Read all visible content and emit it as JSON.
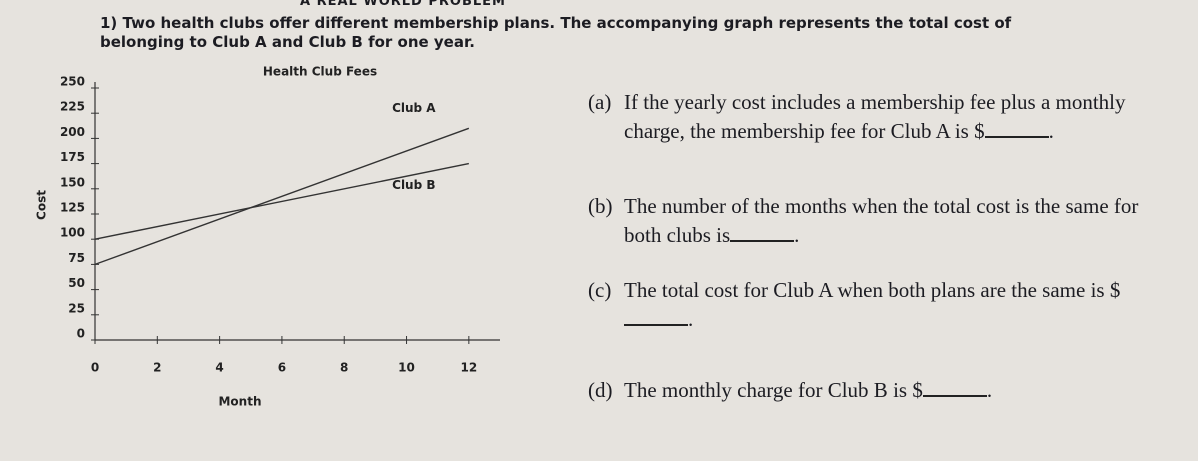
{
  "header": "A REAL WORLD PROBLEM",
  "problem": "1) Two health clubs offer different membership plans. The accompanying graph represents the total cost of belonging to Club A and Club B for one year.",
  "chart": {
    "type": "line",
    "title": "Health Club Fees",
    "x_label": "Month",
    "y_label": "Cost",
    "xlim": [
      0,
      13
    ],
    "ylim": [
      0,
      250
    ],
    "xticks": [
      0,
      2,
      4,
      6,
      8,
      10,
      12
    ],
    "yticks": [
      0,
      25,
      50,
      75,
      100,
      125,
      150,
      175,
      200,
      225,
      250
    ],
    "series": [
      {
        "name": "Club A",
        "color": "#333333",
        "x": [
          0,
          12
        ],
        "values": [
          75,
          210
        ]
      },
      {
        "name": "Club B",
        "color": "#333333",
        "x": [
          0,
          12
        ],
        "values": [
          100,
          175
        ]
      }
    ]
  },
  "questions": [
    {
      "label": "(a)",
      "before": "If the yearly cost includes a membership fee plus a monthly charge, the membership fee for Club A is $",
      "after": "."
    },
    {
      "label": "(b)",
      "before": "The number of the months when the total cost is the same for both clubs is",
      "after": "."
    },
    {
      "label": "(c)",
      "before": "The total cost for Club A when both plans are the same is $",
      "after": "."
    },
    {
      "label": "(d)",
      "before": "The monthly charge for Club B is $",
      "after": "."
    }
  ]
}
